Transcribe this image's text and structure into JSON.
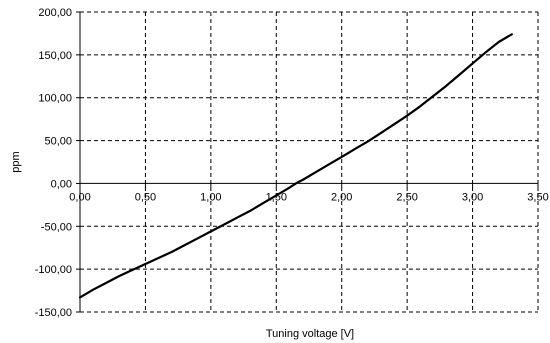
{
  "chart_data": {
    "type": "line",
    "title": "",
    "xlabel": "Tuning voltage [V]",
    "ylabel": "ppm",
    "xlim": [
      0,
      3.5
    ],
    "ylim": [
      -150,
      200
    ],
    "x_ticks": [
      0,
      0.5,
      1.0,
      1.5,
      2.0,
      2.5,
      3.0,
      3.5
    ],
    "x_tick_labels": [
      "0,00",
      "0,50",
      "1,00",
      "1,50",
      "2,00",
      "2,50",
      "3,00",
      "3,50"
    ],
    "y_ticks": [
      -150,
      -100,
      -50,
      0,
      50,
      100,
      150,
      200
    ],
    "y_tick_labels": [
      "-150,00",
      "-100,00",
      "-50,00",
      "0,00",
      "50,00",
      "100,00",
      "150,00",
      "200,00"
    ],
    "grid": "dashed",
    "series": [
      {
        "x": [
          0.0,
          0.1,
          0.2,
          0.3,
          0.4,
          0.5,
          0.6,
          0.7,
          0.8,
          0.9,
          1.0,
          1.1,
          1.2,
          1.3,
          1.4,
          1.5,
          1.6,
          1.65,
          1.7,
          1.8,
          1.9,
          2.0,
          2.1,
          2.2,
          2.3,
          2.4,
          2.5,
          2.6,
          2.7,
          2.8,
          2.9,
          3.0,
          3.1,
          3.2,
          3.3
        ],
        "y": [
          -133,
          -124,
          -116,
          -108,
          -101,
          -94,
          -87,
          -80,
          -72,
          -64,
          -56,
          -48,
          -40,
          -32,
          -23,
          -14,
          -5,
          0,
          4,
          13,
          22,
          31,
          40,
          49,
          59,
          69,
          79,
          90,
          102,
          114,
          127,
          140,
          153,
          165,
          174
        ],
        "color": "#000000"
      }
    ]
  }
}
